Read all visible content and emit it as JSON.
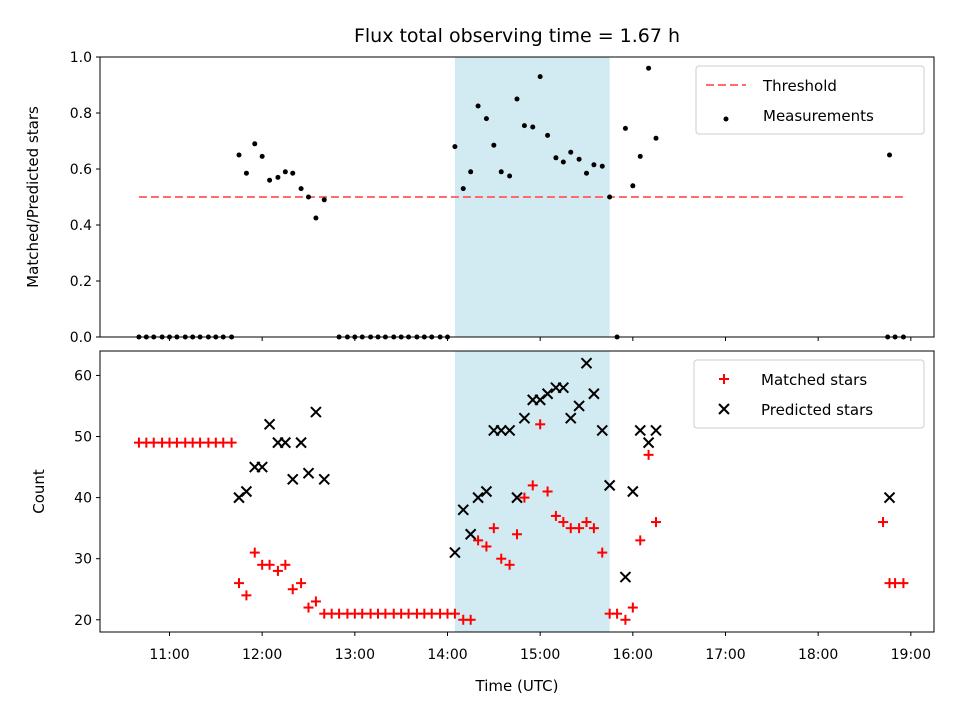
{
  "chart_data": {
    "title": "Flux total observing time = 1.67 h",
    "xlabel": "Time (UTC)",
    "x_units": "hours UTC",
    "xlim": [
      10.25,
      19.25
    ],
    "x_ticks": [
      11,
      12,
      13,
      14,
      15,
      16,
      17,
      18,
      19
    ],
    "x_tick_labels": [
      "11:00",
      "12:00",
      "13:00",
      "14:00",
      "15:00",
      "16:00",
      "17:00",
      "18:00",
      "19:00"
    ],
    "highlight_span": {
      "x": [
        14.08,
        15.75
      ],
      "color": "#add8e6"
    },
    "colors": {
      "threshold": "#ff6b6b",
      "measurements": "#000000",
      "matched": "#ff0000",
      "predicted": "#000000",
      "span": "#add8e6"
    },
    "panels": [
      {
        "type": "scatter",
        "ylabel": "Matched/Predicted stars",
        "ylim": [
          0,
          1.0
        ],
        "y_ticks": [
          0.0,
          0.2,
          0.4,
          0.6,
          0.8,
          1.0
        ],
        "y_tick_labels": [
          "0.0",
          "0.2",
          "0.4",
          "0.6",
          "0.8",
          "1.0"
        ],
        "legend_position": "upper right",
        "threshold": {
          "name": "Threshold",
          "value": 0.5,
          "x": [
            10.67,
            18.92
          ]
        },
        "series": [
          {
            "name": "Measurements",
            "marker": "dot",
            "points": [
              [
                10.67,
                0.0
              ],
              [
                10.75,
                0.0
              ],
              [
                10.83,
                0.0
              ],
              [
                10.92,
                0.0
              ],
              [
                11.0,
                0.0
              ],
              [
                11.08,
                0.0
              ],
              [
                11.17,
                0.0
              ],
              [
                11.25,
                0.0
              ],
              [
                11.33,
                0.0
              ],
              [
                11.42,
                0.0
              ],
              [
                11.5,
                0.0
              ],
              [
                11.58,
                0.0
              ],
              [
                11.67,
                0.0
              ],
              [
                11.75,
                0.65
              ],
              [
                11.83,
                0.585
              ],
              [
                11.92,
                0.69
              ],
              [
                12.0,
                0.645
              ],
              [
                12.08,
                0.56
              ],
              [
                12.17,
                0.57
              ],
              [
                12.25,
                0.59
              ],
              [
                12.33,
                0.585
              ],
              [
                12.42,
                0.53
              ],
              [
                12.5,
                0.5
              ],
              [
                12.58,
                0.425
              ],
              [
                12.67,
                0.49
              ],
              [
                12.83,
                0.0
              ],
              [
                12.92,
                0.0
              ],
              [
                13.0,
                0.0
              ],
              [
                13.08,
                0.0
              ],
              [
                13.17,
                0.0
              ],
              [
                13.25,
                0.0
              ],
              [
                13.33,
                0.0
              ],
              [
                13.42,
                0.0
              ],
              [
                13.5,
                0.0
              ],
              [
                13.58,
                0.0
              ],
              [
                13.67,
                0.0
              ],
              [
                13.75,
                0.0
              ],
              [
                13.83,
                0.0
              ],
              [
                13.92,
                0.0
              ],
              [
                14.0,
                0.0
              ],
              [
                14.08,
                0.68
              ],
              [
                14.17,
                0.53
              ],
              [
                14.25,
                0.59
              ],
              [
                14.33,
                0.825
              ],
              [
                14.42,
                0.78
              ],
              [
                14.5,
                0.685
              ],
              [
                14.58,
                0.59
              ],
              [
                14.67,
                0.575
              ],
              [
                14.75,
                0.85
              ],
              [
                14.83,
                0.755
              ],
              [
                14.92,
                0.75
              ],
              [
                15.0,
                0.93
              ],
              [
                15.08,
                0.72
              ],
              [
                15.17,
                0.64
              ],
              [
                15.25,
                0.625
              ],
              [
                15.33,
                0.66
              ],
              [
                15.42,
                0.635
              ],
              [
                15.5,
                0.585
              ],
              [
                15.58,
                0.615
              ],
              [
                15.67,
                0.61
              ],
              [
                15.75,
                0.5
              ],
              [
                15.83,
                0.0
              ],
              [
                15.92,
                0.745
              ],
              [
                16.0,
                0.54
              ],
              [
                16.08,
                0.645
              ],
              [
                16.17,
                0.96
              ],
              [
                16.25,
                0.71
              ],
              [
                18.75,
                0.0
              ],
              [
                18.77,
                0.65
              ],
              [
                18.83,
                0.0
              ],
              [
                18.92,
                0.0
              ]
            ]
          }
        ]
      },
      {
        "type": "scatter",
        "ylabel": "Count",
        "ylim": [
          18,
          64
        ],
        "y_ticks": [
          20,
          30,
          40,
          50,
          60
        ],
        "y_tick_labels": [
          "20",
          "30",
          "40",
          "50",
          "60"
        ],
        "legend_position": "upper right",
        "series": [
          {
            "name": "Matched stars",
            "marker": "plus",
            "points": [
              [
                10.67,
                49
              ],
              [
                10.75,
                49
              ],
              [
                10.83,
                49
              ],
              [
                10.92,
                49
              ],
              [
                11.0,
                49
              ],
              [
                11.08,
                49
              ],
              [
                11.17,
                49
              ],
              [
                11.25,
                49
              ],
              [
                11.33,
                49
              ],
              [
                11.42,
                49
              ],
              [
                11.5,
                49
              ],
              [
                11.58,
                49
              ],
              [
                11.67,
                49
              ],
              [
                11.75,
                26
              ],
              [
                11.83,
                24
              ],
              [
                11.92,
                31
              ],
              [
                12.0,
                29
              ],
              [
                12.08,
                29
              ],
              [
                12.17,
                28
              ],
              [
                12.25,
                29
              ],
              [
                12.33,
                25
              ],
              [
                12.42,
                26
              ],
              [
                12.5,
                22
              ],
              [
                12.58,
                23
              ],
              [
                12.67,
                21
              ],
              [
                12.75,
                21
              ],
              [
                12.83,
                21
              ],
              [
                12.92,
                21
              ],
              [
                13.0,
                21
              ],
              [
                13.08,
                21
              ],
              [
                13.17,
                21
              ],
              [
                13.25,
                21
              ],
              [
                13.33,
                21
              ],
              [
                13.42,
                21
              ],
              [
                13.5,
                21
              ],
              [
                13.58,
                21
              ],
              [
                13.67,
                21
              ],
              [
                13.75,
                21
              ],
              [
                13.83,
                21
              ],
              [
                13.92,
                21
              ],
              [
                14.0,
                21
              ],
              [
                14.08,
                21
              ],
              [
                14.17,
                20
              ],
              [
                14.25,
                20
              ],
              [
                14.33,
                33
              ],
              [
                14.42,
                32
              ],
              [
                14.5,
                35
              ],
              [
                14.58,
                30
              ],
              [
                14.67,
                29
              ],
              [
                14.75,
                34
              ],
              [
                14.83,
                40
              ],
              [
                14.92,
                42
              ],
              [
                15.0,
                52
              ],
              [
                15.08,
                41
              ],
              [
                15.17,
                37
              ],
              [
                15.25,
                36
              ],
              [
                15.33,
                35
              ],
              [
                15.42,
                35
              ],
              [
                15.5,
                36
              ],
              [
                15.58,
                35
              ],
              [
                15.67,
                31
              ],
              [
                15.75,
                21
              ],
              [
                15.83,
                21
              ],
              [
                15.92,
                20
              ],
              [
                16.0,
                22
              ],
              [
                16.08,
                33
              ],
              [
                16.17,
                47
              ],
              [
                16.25,
                36
              ],
              [
                18.7,
                36
              ],
              [
                18.77,
                26
              ],
              [
                18.83,
                26
              ],
              [
                18.92,
                26
              ]
            ]
          },
          {
            "name": "Predicted stars",
            "marker": "x",
            "points": [
              [
                11.75,
                40
              ],
              [
                11.83,
                41
              ],
              [
                11.92,
                45
              ],
              [
                12.0,
                45
              ],
              [
                12.08,
                52
              ],
              [
                12.17,
                49
              ],
              [
                12.25,
                49
              ],
              [
                12.33,
                43
              ],
              [
                12.42,
                49
              ],
              [
                12.5,
                44
              ],
              [
                12.58,
                54
              ],
              [
                12.67,
                43
              ],
              [
                14.08,
                31
              ],
              [
                14.17,
                38
              ],
              [
                14.25,
                34
              ],
              [
                14.33,
                40
              ],
              [
                14.42,
                41
              ],
              [
                14.5,
                51
              ],
              [
                14.58,
                51
              ],
              [
                14.67,
                51
              ],
              [
                14.75,
                40
              ],
              [
                14.83,
                53
              ],
              [
                14.92,
                56
              ],
              [
                15.0,
                56
              ],
              [
                15.08,
                57
              ],
              [
                15.17,
                58
              ],
              [
                15.25,
                58
              ],
              [
                15.33,
                53
              ],
              [
                15.42,
                55
              ],
              [
                15.5,
                62
              ],
              [
                15.58,
                57
              ],
              [
                15.67,
                51
              ],
              [
                15.75,
                42
              ],
              [
                15.92,
                27
              ],
              [
                16.0,
                41
              ],
              [
                16.08,
                51
              ],
              [
                16.17,
                49
              ],
              [
                16.25,
                51
              ],
              [
                18.77,
                40
              ]
            ]
          }
        ]
      }
    ]
  }
}
